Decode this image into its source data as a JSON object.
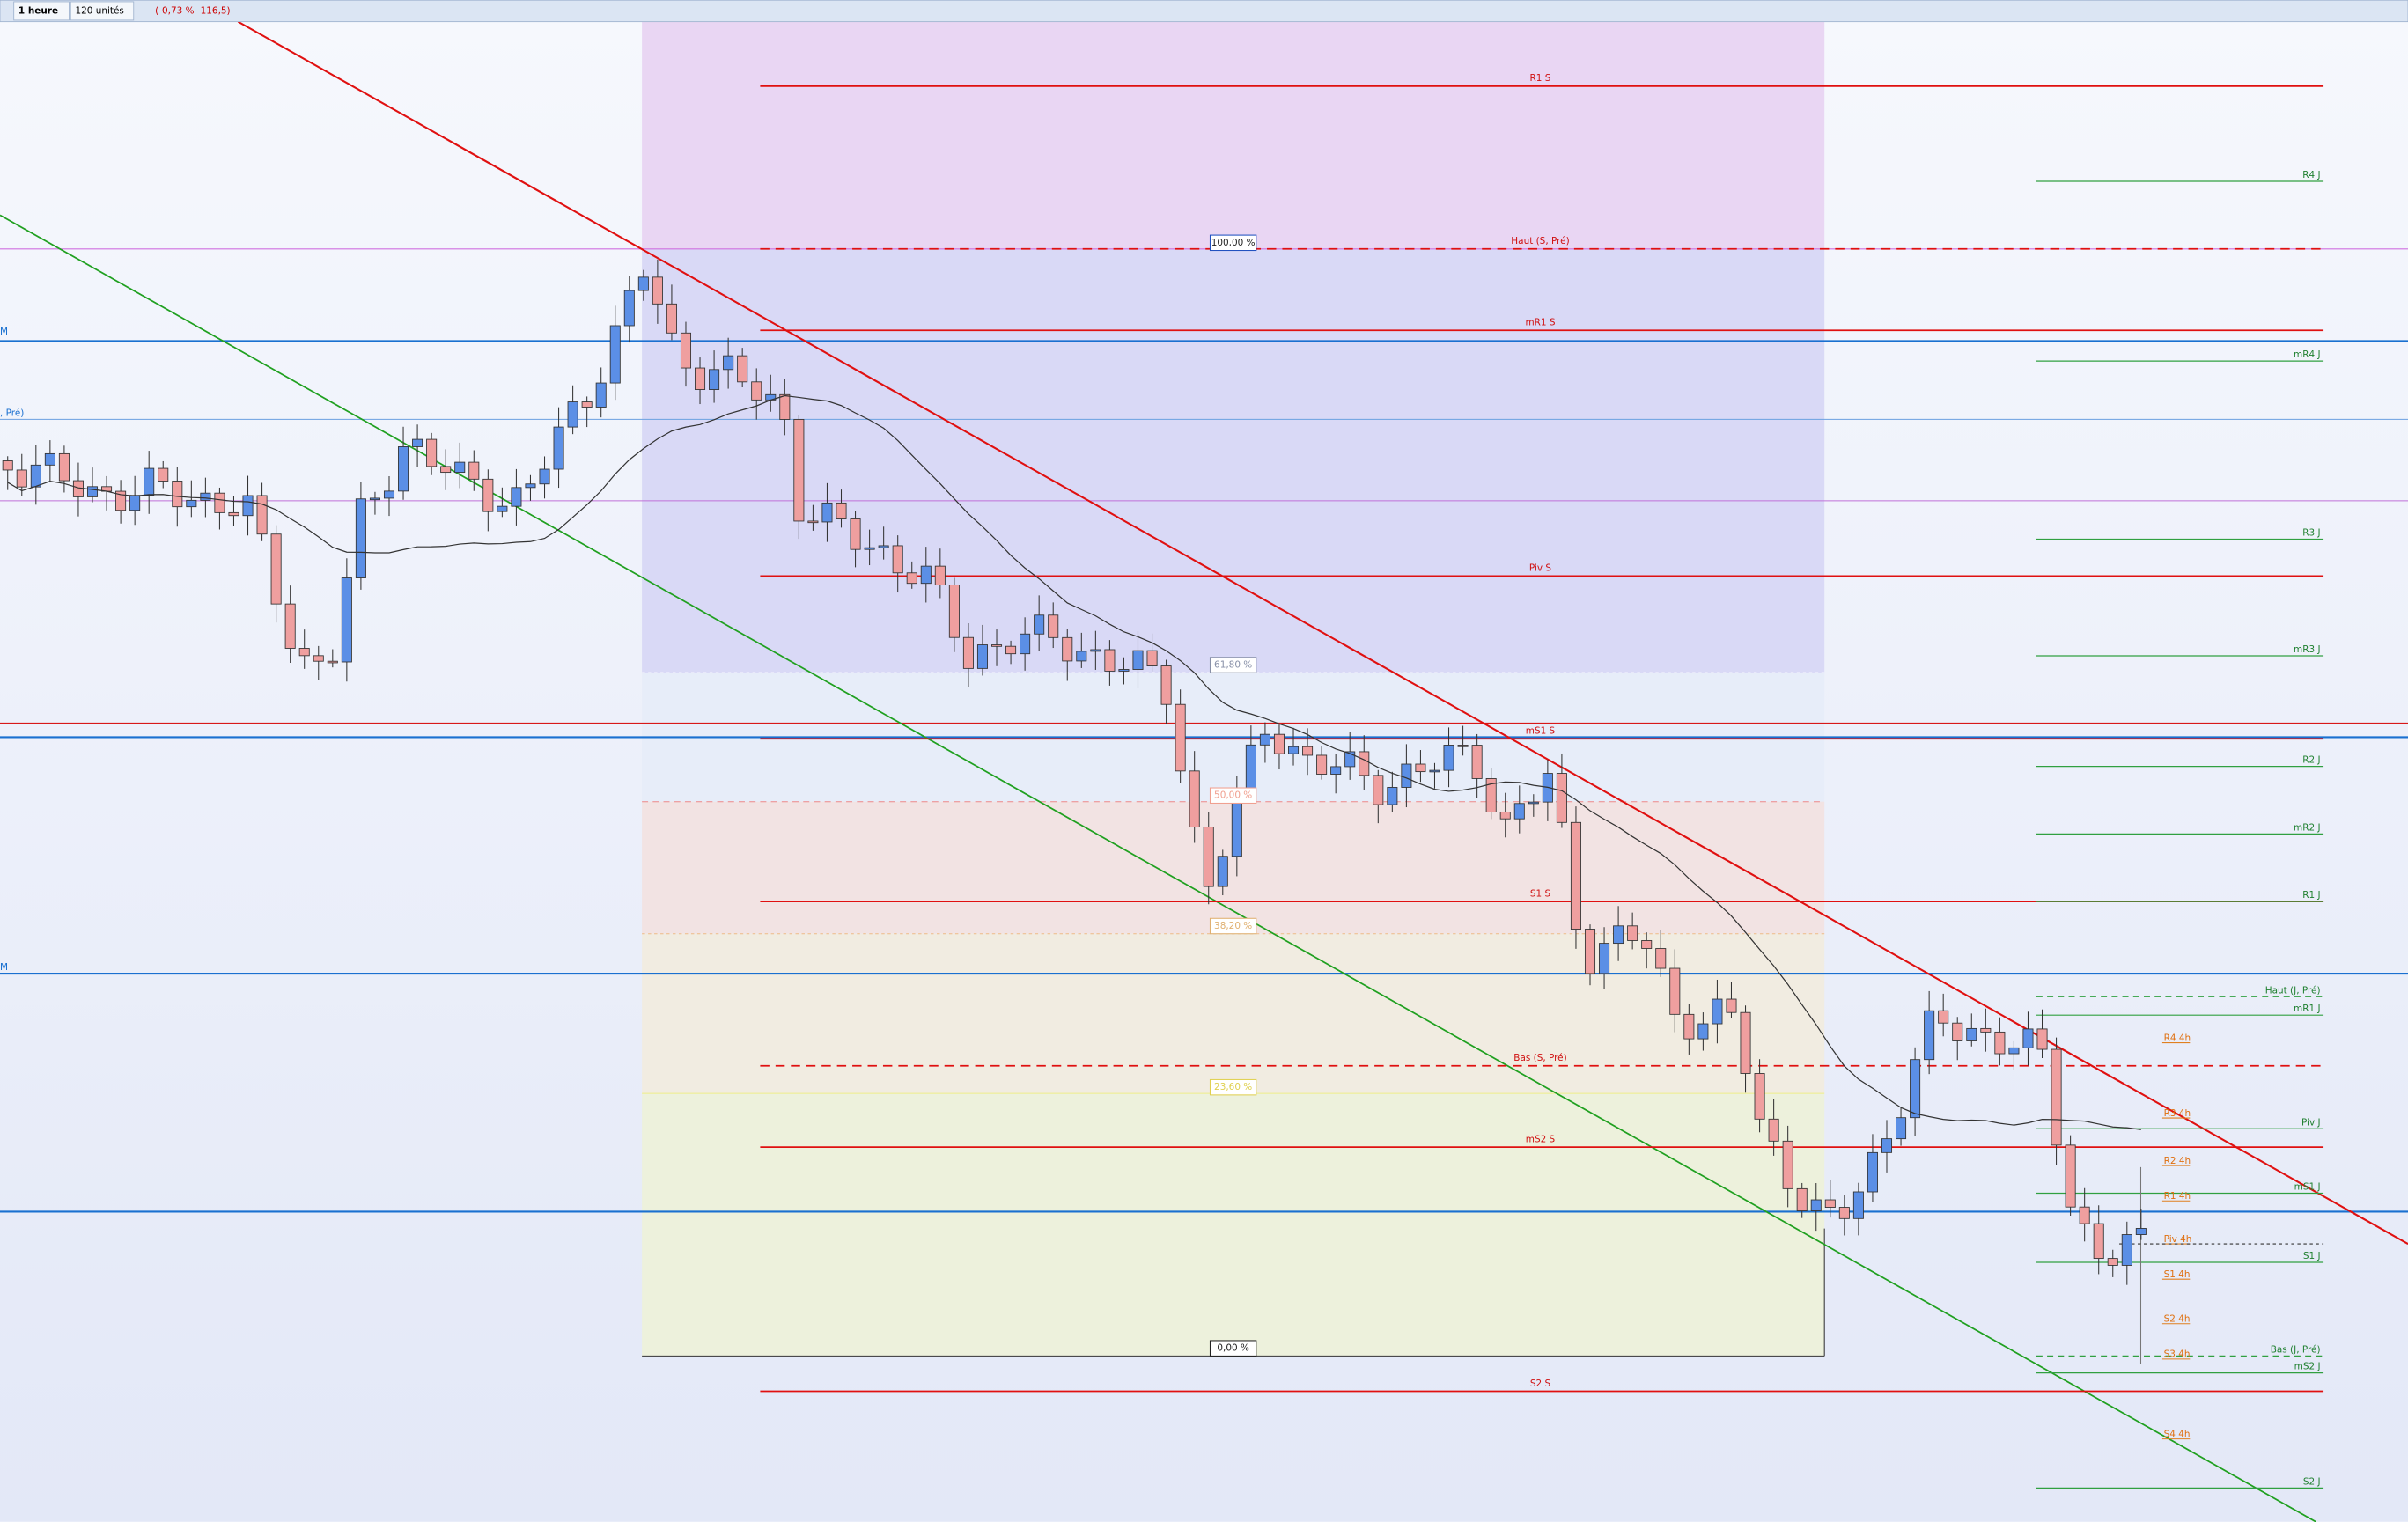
{
  "toolbar": {
    "period": "1 heure",
    "units": "120 unités",
    "change": "(-0,73 % -116,5)"
  },
  "weekly_levels": [
    "R1 S",
    "Haut (S, Pré)",
    "mR1 S",
    "Piv S",
    "mS1 S",
    "S1 S",
    "Bas (S, Pré)",
    "mS2 S",
    "S2 S"
  ],
  "daily_levels": [
    "R4 J",
    "mR4 J",
    "R3 J",
    "mR3 J",
    "R2 J",
    "mR2 J",
    "R1 J",
    "Haut (J, Pré)",
    "mR1 J",
    "Piv J",
    "mS1 J",
    "S1 J",
    "Bas (J, Pré)",
    "mS2 J",
    "S2 J"
  ],
  "h4_levels": [
    "R4 4h",
    "R3 4h",
    "R2 4h",
    "R1 4h",
    "Piv 4h",
    "S1 4h",
    "S2 4h",
    "S3 4h",
    "S4 4h"
  ],
  "fibonacci": [
    "100,00 %",
    "61,80 %",
    "50,00 %",
    "38,20 %",
    "23,60 %",
    "0,00 %"
  ],
  "left_labels": [
    "M",
    ", Pré)",
    "M"
  ]
}
